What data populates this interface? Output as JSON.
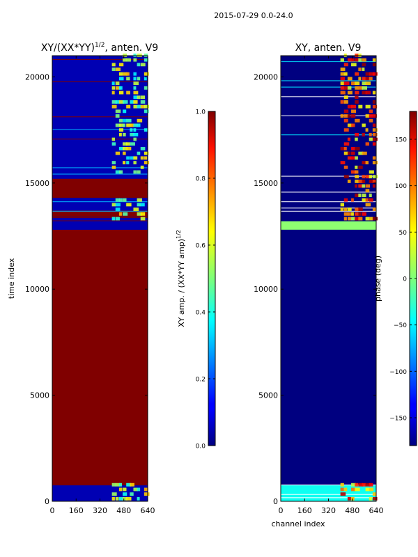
{
  "figure": {
    "suptitle": "2015-07-29 0.0-24.0"
  },
  "chart_data": [
    {
      "type": "heatmap",
      "title": "XY/(XX*YY)^1/2, anten. V9",
      "title_main": "XY/(XX*YY)",
      "title_sup": "1/2",
      "title_tail": ", anten. V9",
      "xlabel": "",
      "ylabel": "time index",
      "xlim": [
        0,
        640
      ],
      "ylim": [
        0,
        21000
      ],
      "xticks": [
        0,
        160,
        320,
        480,
        640
      ],
      "yticks": [
        0,
        5000,
        10000,
        15000,
        20000
      ],
      "colormap": "jet",
      "bands": [
        {
          "y0": 0,
          "y1": 780,
          "value": 0.05
        },
        {
          "y0": 780,
          "y1": 12800,
          "value": 1.0
        },
        {
          "y0": 12800,
          "y1": 13200,
          "value": 0.05
        },
        {
          "y0": 13400,
          "y1": 13700,
          "value": 1.0
        },
        {
          "y0": 14300,
          "y1": 15200,
          "value": 1.0
        },
        {
          "y0": 15400,
          "y1": 21000,
          "value": 0.05
        }
      ],
      "colorbar": {
        "label": "XY amp. / (XX*YY amp)^1/2",
        "label_main": "XY amp. / (XX*YY amp)",
        "label_sup": "1/2",
        "range": [
          0.0,
          1.0
        ],
        "ticks": [
          "0.0",
          "0.2",
          "0.4",
          "0.6",
          "0.8",
          "1.0"
        ]
      }
    },
    {
      "type": "heatmap",
      "title": "XY, anten. V9",
      "xlabel": "channel index",
      "ylabel": "",
      "xlim": [
        0,
        640
      ],
      "ylim": [
        0,
        21000
      ],
      "xticks": [
        0,
        160,
        320,
        480,
        640
      ],
      "yticks": [
        0,
        5000,
        10000,
        15000,
        20000
      ],
      "colormap": "jet",
      "bands": [
        {
          "y0": 0,
          "y1": 780,
          "value": -40
        },
        {
          "y0": 780,
          "y1": 12800,
          "value": -180
        },
        {
          "y0": 12800,
          "y1": 13200,
          "value": 5
        },
        {
          "y0": 13200,
          "y1": 21000,
          "value": -180
        }
      ],
      "colorbar": {
        "label": "phase (deg)",
        "range": [
          -180,
          180
        ],
        "ticks": [
          "−150",
          "−100",
          "−50",
          "0",
          "50",
          "100",
          "150"
        ],
        "tick_values": [
          -150,
          -100,
          -50,
          0,
          50,
          100,
          150
        ]
      }
    }
  ]
}
